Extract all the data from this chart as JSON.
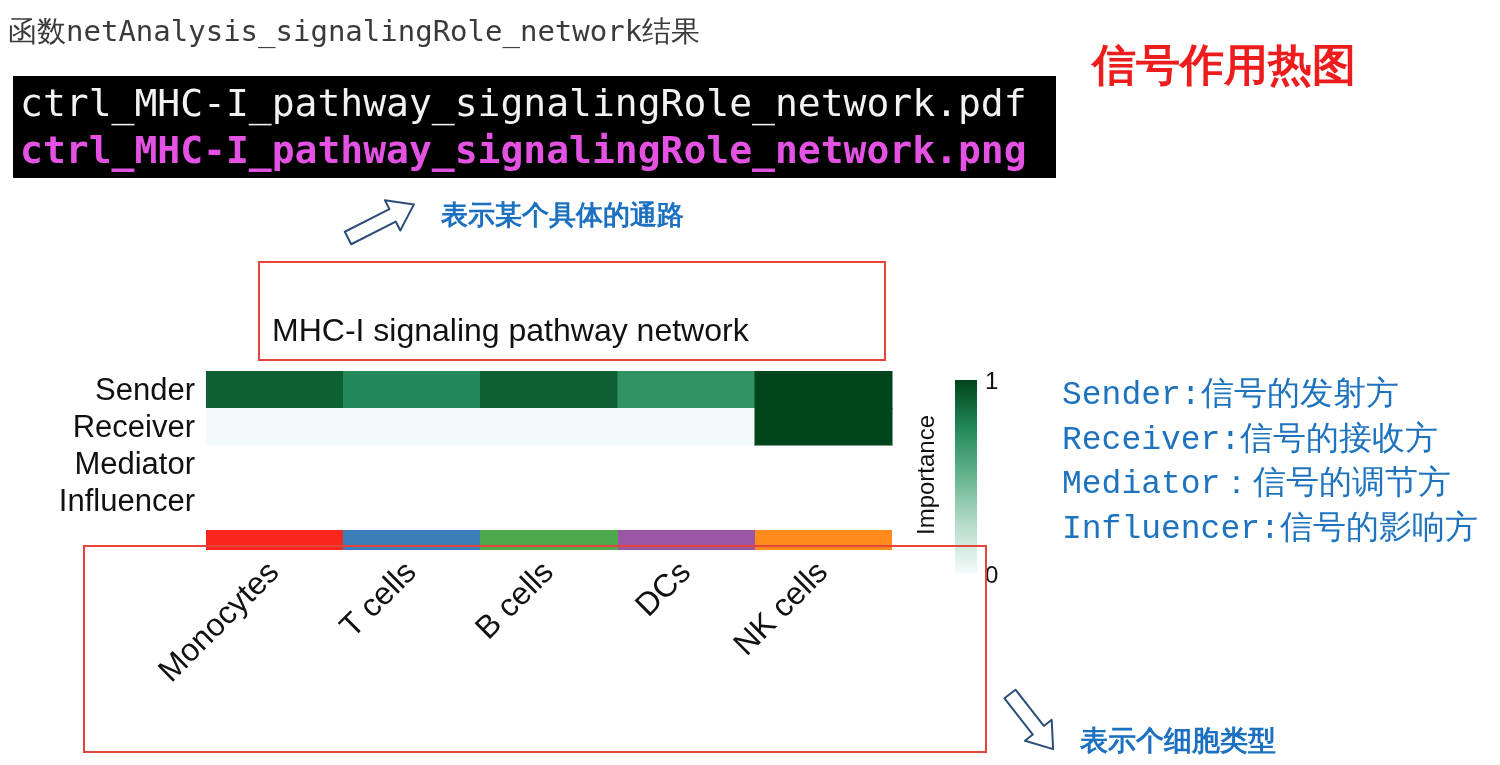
{
  "chart_data": {
    "type": "heatmap",
    "title": "MHC-I signaling pathway network",
    "categories": [
      "Monocytes",
      "T cells",
      "B cells",
      "DCs",
      "NK cells"
    ],
    "y_categories": [
      "Sender",
      "Receiver",
      "Mediator",
      "Influencer"
    ],
    "cells": [
      [
        0.9,
        0.75,
        0.9,
        0.7,
        1
      ],
      [
        0,
        0,
        0,
        0,
        1
      ],
      [
        null,
        null,
        null,
        null,
        null
      ],
      [
        null,
        null,
        null,
        null,
        null
      ]
    ],
    "clim": [
      0,
      1
    ],
    "cticks": [
      0,
      1
    ],
    "clabel": "Importance",
    "annotations": [
      "函数netAnalysis_signalingRole_network结果",
      "ctrl_MHC-I_pathway_signalingRole_network.pdf",
      "ctrl_MHC-I_pathway_signalingRole_network.png",
      "信号作用热图",
      "表示某个具体的通路",
      "Sender:信号的发射方",
      "Receiver:信号的接收方",
      "Mediator：信号的调节方",
      "Influencer:信号的影响方",
      "表示个细胞类型"
    ]
  }
}
